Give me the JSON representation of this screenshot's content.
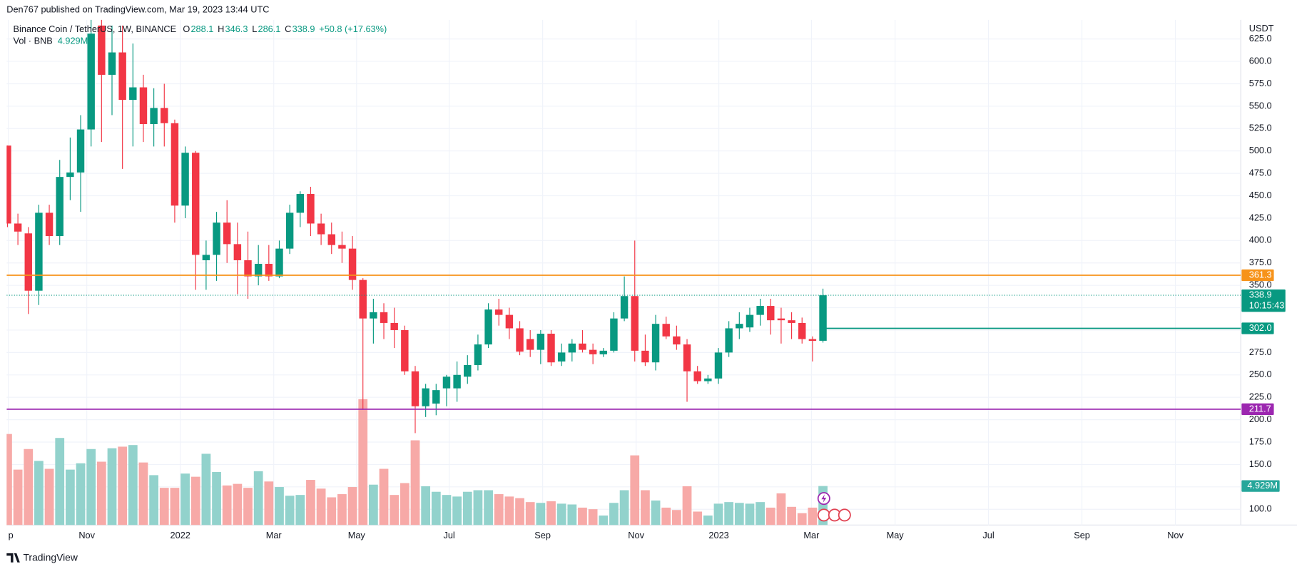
{
  "chart_data": {
    "type": "candlestick",
    "attribution": "Den767 published on TradingView.com, Mar 19, 2023 13:44 UTC",
    "title": "Binance Coin / TetherUS, 1W, BINANCE",
    "legend_prefixes": [
      "O",
      "H",
      "L",
      "C"
    ],
    "change": "+50.8 (+17.63%)",
    "volume_title": "Vol · BNB",
    "volume_label": "4.929M",
    "y_unit": "USDT",
    "brand": "TradingView",
    "countdown": "10:15:43",
    "up_color": "#089981",
    "down_color": "#f23645",
    "volume_up_color": "#92d2cc",
    "volume_down_color": "#f7a9a7",
    "grid": true,
    "open": [
      506,
      419,
      408,
      344,
      431,
      405,
      471,
      476,
      524,
      640,
      585,
      610,
      557,
      571,
      530,
      548,
      531,
      439,
      498,
      378,
      384,
      420,
      396,
      378,
      360,
      374,
      360,
      391,
      431,
      452,
      419,
      407,
      395,
      391,
      356,
      313,
      320,
      308,
      300,
      254,
      215,
      218,
      235,
      235,
      248,
      261,
      284,
      323,
      317,
      302,
      290,
      278,
      296,
      265,
      275,
      285,
      278,
      273,
      277,
      313,
      338,
      277,
      264,
      307,
      293,
      284,
      254,
      243,
      246,
      275,
      302,
      303,
      317,
      327,
      313,
      311,
      308,
      290,
      288.1
    ],
    "high": [
      506,
      430,
      415,
      440,
      440,
      490,
      515,
      540,
      690,
      690,
      640,
      640,
      620,
      585,
      570,
      575,
      535,
      505,
      500,
      400,
      432,
      445,
      420,
      410,
      395,
      395,
      400,
      440,
      455,
      460,
      430,
      420,
      410,
      405,
      358,
      335,
      330,
      325,
      305,
      260,
      240,
      240,
      250,
      265,
      272,
      295,
      330,
      335,
      325,
      310,
      300,
      300,
      300,
      285,
      290,
      300,
      285,
      280,
      320,
      360,
      400,
      295,
      317,
      315,
      305,
      290,
      260,
      250,
      280,
      310,
      320,
      325,
      335,
      335,
      325,
      320,
      314,
      293,
      346.3
    ],
    "low": [
      415,
      395,
      318,
      328,
      395,
      395,
      445,
      432,
      505,
      510,
      540,
      480,
      505,
      510,
      505,
      505,
      420,
      425,
      345,
      345,
      355,
      375,
      340,
      335,
      350,
      355,
      358,
      385,
      415,
      405,
      395,
      385,
      375,
      345,
      211,
      285,
      290,
      280,
      250,
      185,
      203,
      205,
      215,
      220,
      240,
      255,
      280,
      305,
      290,
      272,
      270,
      262,
      260,
      260,
      265,
      275,
      262,
      270,
      275,
      310,
      265,
      260,
      255,
      290,
      278,
      220,
      240,
      240,
      240,
      270,
      290,
      298,
      305,
      295,
      285,
      290,
      285,
      265,
      286.1
    ],
    "close": [
      419,
      410,
      344,
      431,
      405,
      471,
      476,
      524,
      631,
      585,
      610,
      557,
      571,
      530,
      548,
      531,
      439,
      498,
      384,
      384,
      420,
      396,
      378,
      360,
      374,
      360,
      391,
      431,
      452,
      419,
      407,
      395,
      391,
      356,
      313,
      320,
      308,
      300,
      254,
      215,
      235,
      233,
      248,
      250,
      261,
      284,
      323,
      317,
      302,
      276,
      278,
      296,
      264,
      275,
      285,
      278,
      273,
      277,
      313,
      338,
      277,
      264,
      307,
      293,
      284,
      254,
      243,
      246,
      275,
      302,
      307,
      317,
      327,
      311,
      311,
      308,
      290,
      288,
      338.9
    ],
    "volume": [
      11.5,
      7.0,
      9.6,
      8.1,
      7.1,
      11.0,
      7.0,
      7.8,
      9.6,
      8.0,
      9.7,
      9.9,
      10.1,
      7.9,
      6.3,
      4.7,
      4.7,
      6.5,
      6.1,
      9.0,
      6.7,
      5.0,
      5.2,
      4.7,
      6.8,
      5.5,
      4.8,
      3.7,
      3.8,
      5.7,
      4.6,
      3.5,
      3.9,
      4.8,
      15.9,
      5.1,
      7.1,
      3.8,
      5.3,
      10.7,
      4.9,
      4.2,
      3.8,
      3.6,
      4.2,
      4.4,
      4.4,
      3.9,
      3.6,
      3.4,
      2.9,
      2.8,
      3.0,
      2.7,
      2.6,
      2.2,
      2.0,
      1.2,
      2.8,
      4.4,
      8.8,
      4.4,
      3.1,
      2.2,
      1.9,
      4.9,
      1.7,
      1.2,
      2.7,
      2.9,
      2.8,
      2.7,
      2.9,
      2.2,
      4.0,
      2.3,
      1.5,
      2.2,
      4.929
    ],
    "xlim": [
      -0.08,
      117.96
    ],
    "xticks": [
      {
        "value": 0.08,
        "label": "p"
      },
      {
        "value": 7.59,
        "label": "Nov"
      },
      {
        "value": 16.53,
        "label": "2022"
      },
      {
        "value": 25.47,
        "label": "Mar"
      },
      {
        "value": 33.39,
        "label": "May"
      },
      {
        "value": 42.25,
        "label": "Jul"
      },
      {
        "value": 51.19,
        "label": "Sep"
      },
      {
        "value": 60.13,
        "label": "Nov"
      },
      {
        "value": 68.04,
        "label": "2023"
      },
      {
        "value": 76.9,
        "label": "Mar"
      },
      {
        "value": 84.9,
        "label": "May"
      },
      {
        "value": 93.83,
        "label": "Jul"
      },
      {
        "value": 102.77,
        "label": "Sep"
      },
      {
        "value": 111.71,
        "label": "Nov"
      }
    ],
    "ylim": [
      82.4,
      646.3
    ],
    "yticks": [
      {
        "value": 100,
        "label": "100.0"
      },
      {
        "value": 125,
        "label": "125.0"
      },
      {
        "value": 150,
        "label": "150.0"
      },
      {
        "value": 175,
        "label": "175.0"
      },
      {
        "value": 200,
        "label": "200.0"
      },
      {
        "value": 225,
        "label": "225.0"
      },
      {
        "value": 250,
        "label": "250.0"
      },
      {
        "value": 275,
        "label": "275.0"
      },
      {
        "value": 300,
        "label": "300.0"
      },
      {
        "value": 325,
        "label": "325.0"
      },
      {
        "value": 350,
        "label": "350.0"
      },
      {
        "value": 375,
        "label": "375.0"
      },
      {
        "value": 400,
        "label": "400.0"
      },
      {
        "value": 425,
        "label": "425.0"
      },
      {
        "value": 450,
        "label": "450.0"
      },
      {
        "value": 475,
        "label": "475.0"
      },
      {
        "value": 500,
        "label": "500.0"
      },
      {
        "value": 525,
        "label": "525.0"
      },
      {
        "value": 550,
        "label": "550.0"
      },
      {
        "value": 575,
        "label": "575.0"
      },
      {
        "value": 600,
        "label": "600.0"
      },
      {
        "value": 625,
        "label": "625.0"
      }
    ],
    "y2lim": [
      0,
      63.8
    ],
    "price_lines": [
      {
        "value": 361.3,
        "color": "#f7931a"
      },
      {
        "value": 302,
        "label": "302.0",
        "color": "#089981",
        "ray": true
      },
      {
        "value": 211.7,
        "color": "#9c27b0"
      }
    ]
  }
}
